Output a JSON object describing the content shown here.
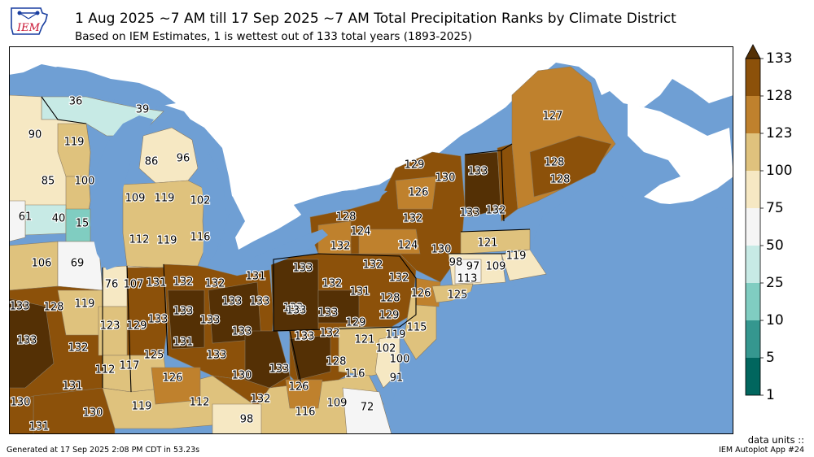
{
  "header": {
    "title": "1 Aug 2025 ~7 AM till 17 Sep 2025 ~7 AM Total Precipitation Ranks by Climate District",
    "subtitle": "Based on IEM Estimates, 1 is wettest out of 133 total years (1893-2025)"
  },
  "logo": {
    "text": "IEM"
  },
  "footer": {
    "generated": "Generated at 17 Sep 2025 2:08 PM CDT in 53.23s",
    "units": "data units ::",
    "app": "IEM Autoplot App #24"
  },
  "colors": {
    "water": "#6f9fd4",
    "land_outside": "#ffffff",
    "boundary": "#000000"
  },
  "legend": {
    "ticks": [
      "133",
      "128",
      "123",
      "100",
      "75",
      "50",
      "25",
      "10",
      "5",
      "1"
    ],
    "bins": [
      {
        "from": 128,
        "to": 133,
        "color": "#8c510a"
      },
      {
        "from": 123,
        "to": 128,
        "color": "#bf812d"
      },
      {
        "from": 100,
        "to": 123,
        "color": "#dfc27d"
      },
      {
        "from": 75,
        "to": 100,
        "color": "#f6e8c3"
      },
      {
        "from": 50,
        "to": 75,
        "color": "#f5f5f5"
      },
      {
        "from": 25,
        "to": 50,
        "color": "#c7eae5"
      },
      {
        "from": 10,
        "to": 25,
        "color": "#80cdc1"
      },
      {
        "from": 5,
        "to": 10,
        "color": "#35978f"
      },
      {
        "from": 1,
        "to": 5,
        "color": "#01665e"
      }
    ],
    "over_color": "#543005"
  },
  "districts": [
    {
      "rank": "36"
    },
    {
      "rank": "39"
    },
    {
      "rank": "90"
    },
    {
      "rank": "119"
    },
    {
      "rank": "86"
    },
    {
      "rank": "96"
    },
    {
      "rank": "85"
    },
    {
      "rank": "100"
    },
    {
      "rank": "109"
    },
    {
      "rank": "119"
    },
    {
      "rank": "102"
    },
    {
      "rank": "61"
    },
    {
      "rank": "40"
    },
    {
      "rank": "15"
    },
    {
      "rank": "112"
    },
    {
      "rank": "119"
    },
    {
      "rank": "116"
    },
    {
      "rank": "106"
    },
    {
      "rank": "69"
    },
    {
      "rank": "76"
    },
    {
      "rank": "107"
    },
    {
      "rank": "131"
    },
    {
      "rank": "132"
    },
    {
      "rank": "132"
    },
    {
      "rank": "131"
    },
    {
      "rank": "133"
    },
    {
      "rank": "128"
    },
    {
      "rank": "119"
    },
    {
      "rank": "133"
    },
    {
      "rank": "133"
    },
    {
      "rank": "133"
    },
    {
      "rank": "123"
    },
    {
      "rank": "129"
    },
    {
      "rank": "133"
    },
    {
      "rank": "133"
    },
    {
      "rank": "133"
    },
    {
      "rank": "132"
    },
    {
      "rank": "131"
    },
    {
      "rank": "133"
    },
    {
      "rank": "125"
    },
    {
      "rank": "112"
    },
    {
      "rank": "117"
    },
    {
      "rank": "133"
    },
    {
      "rank": "126"
    },
    {
      "rank": "130"
    },
    {
      "rank": "132"
    },
    {
      "rank": "131"
    },
    {
      "rank": "130"
    },
    {
      "rank": "119"
    },
    {
      "rank": "112"
    },
    {
      "rank": "130"
    },
    {
      "rank": "131"
    },
    {
      "rank": "98"
    },
    {
      "rank": "133"
    },
    {
      "rank": "133"
    },
    {
      "rank": "132"
    },
    {
      "rank": "126"
    },
    {
      "rank": "116"
    },
    {
      "rank": "109"
    },
    {
      "rank": "72"
    },
    {
      "rank": "128"
    },
    {
      "rank": "116"
    },
    {
      "rank": "91"
    },
    {
      "rank": "133"
    },
    {
      "rank": "132"
    },
    {
      "rank": "132"
    },
    {
      "rank": "133"
    },
    {
      "rank": "131"
    },
    {
      "rank": "133"
    },
    {
      "rank": "128"
    },
    {
      "rank": "129"
    },
    {
      "rank": "133"
    },
    {
      "rank": "132"
    },
    {
      "rank": "129"
    },
    {
      "rank": "121"
    },
    {
      "rank": "119"
    },
    {
      "rank": "102"
    },
    {
      "rank": "100"
    },
    {
      "rank": "115"
    },
    {
      "rank": "126"
    },
    {
      "rank": "133"
    },
    {
      "rank": "132"
    },
    {
      "rank": "128"
    },
    {
      "rank": "124"
    },
    {
      "rank": "132"
    },
    {
      "rank": "124"
    },
    {
      "rank": "130"
    },
    {
      "rank": "129"
    },
    {
      "rank": "126"
    },
    {
      "rank": "130"
    },
    {
      "rank": "133"
    },
    {
      "rank": "133"
    },
    {
      "rank": "132"
    },
    {
      "rank": "127"
    },
    {
      "rank": "128"
    },
    {
      "rank": "128"
    },
    {
      "rank": "121"
    },
    {
      "rank": "98"
    },
    {
      "rank": "97"
    },
    {
      "rank": "113"
    },
    {
      "rank": "109"
    },
    {
      "rank": "119"
    },
    {
      "rank": "125"
    }
  ]
}
